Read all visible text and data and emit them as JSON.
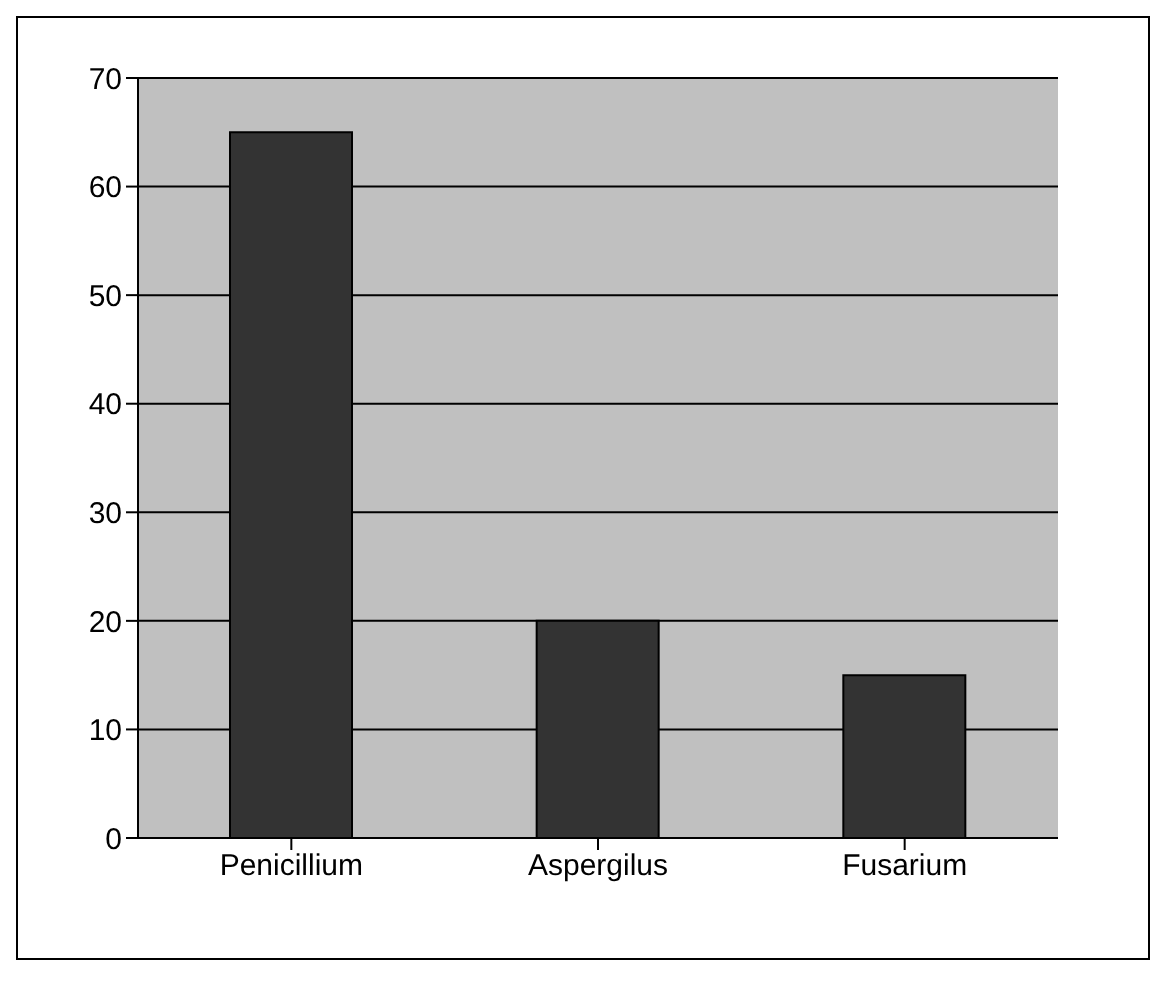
{
  "chart_data": {
    "type": "bar",
    "categories": [
      "Penicillium",
      "Aspergilus",
      "Fusarium"
    ],
    "values": [
      65,
      20,
      15
    ],
    "color": "#333333",
    "ylim": [
      0,
      70
    ],
    "yticks": [
      0,
      10,
      20,
      30,
      40,
      50,
      60,
      70
    ],
    "grid": "y"
  }
}
